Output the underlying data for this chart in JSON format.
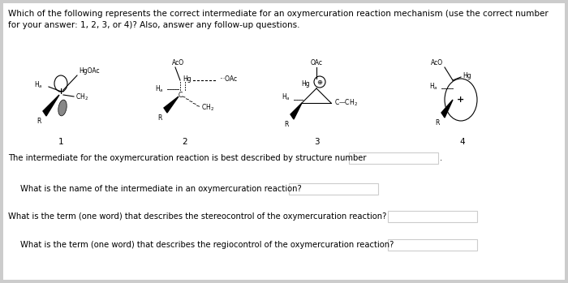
{
  "background_color": "#cccccc",
  "title_text": "Which of the following represents the correct intermediate for an oxymercuration reaction mechanism (use the correct number",
  "title_text2": "for your answer: 1, 2, 3, or 4)? Also, answer any follow-up questions.",
  "q1": "The intermediate for the oxymercuration reaction is best described by structure number",
  "q2": "What is the name of the intermediate in an oxymercuration reaction?",
  "q3": "What is the term (one word) that describes the stereocontrol of the oxymercuration reaction?",
  "q4": "What is the term (one word) that describes the regiocontrol of the oxymercuration reaction?",
  "font_size_title": 7.5,
  "font_size_q": 7.2,
  "font_size_struct": 7.5,
  "font_size_label": 5.5
}
